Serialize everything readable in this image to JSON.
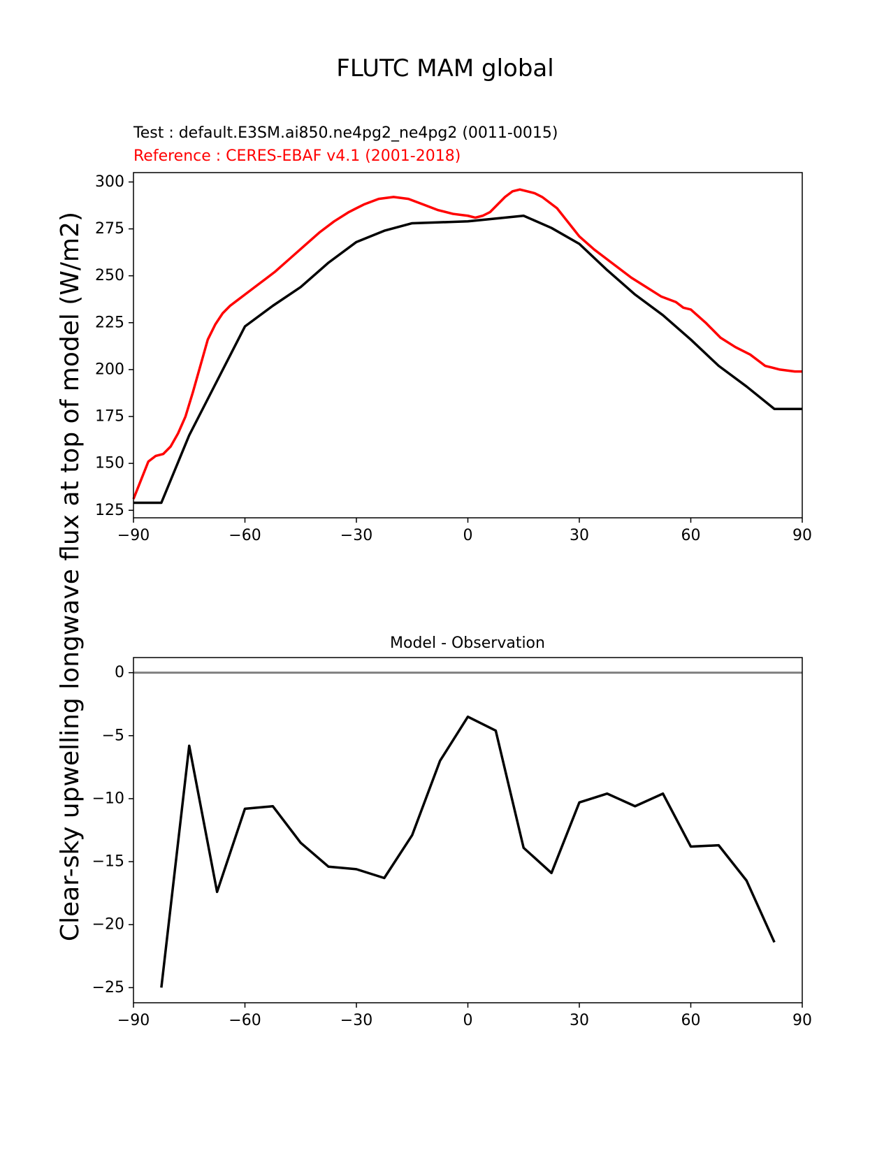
{
  "chart_data": [
    {
      "type": "line",
      "title": "FLUTC MAM global",
      "test_label": "Test : default.E3SM.ai850.ne4pg2_ne4pg2 (0011-0015)",
      "reference_label": "Reference : CERES-EBAF v4.1 (2001-2018)",
      "ylabel": "Clear-sky upwelling longwave flux at top of model (W/m2)",
      "xlim": [
        -90,
        90
      ],
      "ylim": [
        121,
        305
      ],
      "xticks": [
        "−90",
        "−60",
        "−30",
        "0",
        "30",
        "60",
        "90"
      ],
      "yticks": [
        "125",
        "150",
        "175",
        "200",
        "225",
        "250",
        "275",
        "300"
      ],
      "colors": {
        "test": "#000000",
        "reference": "#ff0000"
      },
      "series": [
        {
          "name": "Reference",
          "x": [
            -90,
            -88,
            -86,
            -84,
            -82,
            -80,
            -78,
            -76,
            -74,
            -72,
            -70,
            -68,
            -66,
            -64,
            -62,
            -60,
            -56,
            -52,
            -48,
            -44,
            -40,
            -36,
            -32,
            -28,
            -24,
            -20,
            -16,
            -12,
            -8,
            -4,
            0,
            2,
            4,
            6,
            8,
            10,
            12,
            14,
            16,
            18,
            20,
            24,
            26,
            28,
            30,
            34,
            36,
            40,
            44,
            48,
            52,
            56,
            58,
            60,
            64,
            66,
            68,
            72,
            74,
            76,
            80,
            82,
            84,
            86,
            88,
            90
          ],
          "values": [
            131,
            141,
            151,
            154,
            155,
            159,
            166,
            175,
            188,
            202,
            216,
            224,
            230,
            234,
            237,
            240,
            246,
            252,
            259,
            266,
            273,
            279,
            284,
            288,
            291,
            292,
            291,
            288,
            285,
            283,
            282,
            281,
            282,
            284,
            288,
            292,
            295,
            296,
            295,
            294,
            292,
            286,
            281,
            276,
            271,
            264,
            261,
            255,
            249,
            244,
            239,
            236,
            233,
            232,
            225,
            221,
            217,
            212,
            210,
            208,
            202,
            201,
            200,
            199.5,
            199,
            199
          ]
        },
        {
          "name": "Test",
          "x": [
            -90,
            -82.5,
            -75,
            -67.5,
            -60,
            -52.5,
            -45,
            -37.5,
            -30,
            -22.5,
            -15,
            -7.5,
            0,
            7.5,
            15,
            22.5,
            30,
            37.5,
            45,
            52.5,
            60,
            67.5,
            75,
            82.5,
            90
          ],
          "values": [
            129,
            129,
            165,
            194,
            223,
            234,
            244,
            257,
            268,
            274,
            278,
            278.5,
            279,
            280.5,
            282,
            275.5,
            267,
            253,
            240,
            229,
            216,
            202,
            191,
            179,
            179
          ]
        }
      ]
    },
    {
      "type": "line",
      "title": "Model - Observation",
      "xlim": [
        -90,
        90
      ],
      "ylim": [
        -26.2,
        1.2
      ],
      "xticks": [
        "−90",
        "−60",
        "−30",
        "0",
        "30",
        "60",
        "90"
      ],
      "yticks": [
        "0",
        "−5",
        "−10",
        "−15",
        "−20",
        "−25"
      ],
      "zero_line": 0,
      "colors": {
        "diff": "#000000",
        "zero": "#808080"
      },
      "series": [
        {
          "name": "Model - Observation",
          "x": [
            -82.5,
            -75,
            -67.5,
            -60,
            -52.5,
            -45,
            -37.5,
            -30,
            -22.5,
            -15,
            -7.5,
            0,
            7.5,
            15,
            22.5,
            30,
            37.5,
            45,
            52.5,
            60,
            67.5,
            75,
            82.5
          ],
          "values": [
            -25.0,
            -5.8,
            -17.4,
            -10.8,
            -10.6,
            -13.5,
            -15.4,
            -15.6,
            -16.3,
            -12.9,
            -7.0,
            -3.5,
            -4.6,
            -13.9,
            -15.9,
            -10.3,
            -9.6,
            -10.6,
            -9.6,
            -13.8,
            -13.7,
            -16.5,
            -21.4
          ]
        }
      ]
    }
  ]
}
